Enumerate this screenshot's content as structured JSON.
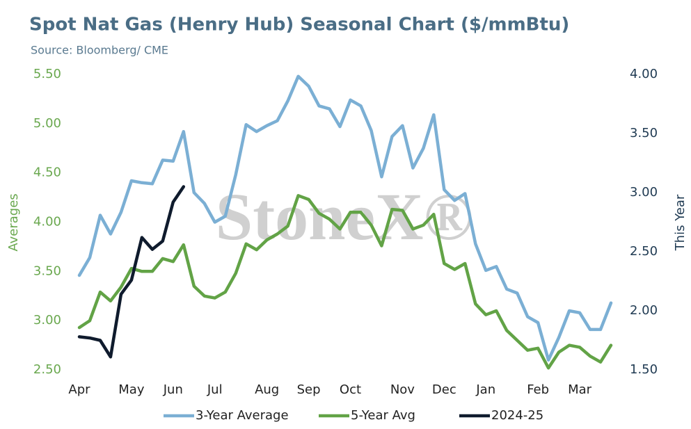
{
  "chart_data": {
    "type": "line",
    "title": "Spot Nat Gas (Henry Hub) Seasonal Chart ($/mmBtu)",
    "subtitle": "Source: Bloomberg/ CME",
    "watermark": "StoneX®",
    "y_label": "Averages",
    "y2_label": "This Year",
    "categories": [
      "Apr",
      null,
      null,
      null,
      null,
      "May",
      null,
      null,
      null,
      "Jun",
      null,
      null,
      null,
      "Jul",
      null,
      null,
      null,
      null,
      "Aug",
      null,
      null,
      null,
      "Sep",
      null,
      null,
      null,
      "Oct",
      null,
      null,
      null,
      null,
      "Nov",
      null,
      null,
      null,
      "Dec",
      null,
      null,
      null,
      "Jan",
      null,
      null,
      null,
      null,
      "Feb",
      null,
      null,
      null,
      "Mar",
      null,
      null,
      null
    ],
    "ylim": [
      2.5,
      5.5
    ],
    "yticks": [
      {
        "value": 2.5,
        "label": "2.50"
      },
      {
        "value": 3,
        "label": "3.00"
      },
      {
        "value": 3.5,
        "label": "3.50"
      },
      {
        "value": 4,
        "label": "4.00"
      },
      {
        "value": 4.5,
        "label": "4.50"
      },
      {
        "value": 5,
        "label": "5.00"
      },
      {
        "value": 5.5,
        "label": "5.50"
      }
    ],
    "y2lim": [
      1.5,
      4.0
    ],
    "y2ticks": [
      {
        "value": 1.5,
        "label": "1.50"
      },
      {
        "value": 2,
        "label": "2.00"
      },
      {
        "value": 2.5,
        "label": "2.50"
      },
      {
        "value": 3,
        "label": "3.00"
      },
      {
        "value": 3.5,
        "label": "3.50"
      },
      {
        "value": 4,
        "label": "4.00"
      }
    ],
    "ycolor": "#6aa84f",
    "y2color": "#1f3a52",
    "legend": "bottom",
    "series": [
      {
        "name": "3-Year Average",
        "color": "#7bafd4",
        "values": [
          3.46,
          3.64,
          4.07,
          3.88,
          4.1,
          4.42,
          4.4,
          4.39,
          4.63,
          4.62,
          4.92,
          4.3,
          4.19,
          4.0,
          4.06,
          4.48,
          4.99,
          4.92,
          4.98,
          5.03,
          5.23,
          5.48,
          5.38,
          5.18,
          5.15,
          4.97,
          5.24,
          5.18,
          4.93,
          4.46,
          4.87,
          4.98,
          4.55,
          4.75,
          5.09,
          4.33,
          4.22,
          4.29,
          3.78,
          3.51,
          3.55,
          3.32,
          3.28,
          3.04,
          2.98,
          2.6,
          2.83,
          3.1,
          3.08,
          2.91,
          2.91,
          3.18
        ]
      },
      {
        "name": "5-Year Avg",
        "color": "#62a346",
        "values": [
          2.93,
          3.0,
          3.29,
          3.2,
          3.34,
          3.53,
          3.5,
          3.5,
          3.63,
          3.6,
          3.77,
          3.35,
          3.25,
          3.23,
          3.29,
          3.48,
          3.78,
          3.72,
          3.82,
          3.88,
          3.96,
          4.27,
          4.23,
          4.09,
          4.03,
          3.93,
          4.1,
          4.1,
          3.97,
          3.76,
          4.13,
          4.12,
          3.93,
          3.97,
          4.08,
          3.58,
          3.52,
          3.58,
          3.17,
          3.06,
          3.1,
          2.9,
          2.8,
          2.7,
          2.72,
          2.52,
          2.68,
          2.75,
          2.73,
          2.64,
          2.58,
          2.75
        ]
      },
      {
        "name": "2024-25",
        "color": "#0f1b2d",
        "axis": "y2",
        "values": [
          1.78,
          1.77,
          1.75,
          1.61,
          2.14,
          2.26,
          2.62,
          2.52,
          2.59,
          2.92,
          3.05,
          null,
          null,
          null,
          null,
          null,
          null,
          null,
          null,
          null,
          null,
          null,
          null,
          null,
          null,
          null,
          null,
          null,
          null,
          null,
          null,
          null,
          null,
          null,
          null,
          null,
          null,
          null,
          null,
          null,
          null,
          null,
          null,
          null,
          null,
          null,
          null,
          null,
          null,
          null,
          null,
          null
        ]
      }
    ]
  }
}
